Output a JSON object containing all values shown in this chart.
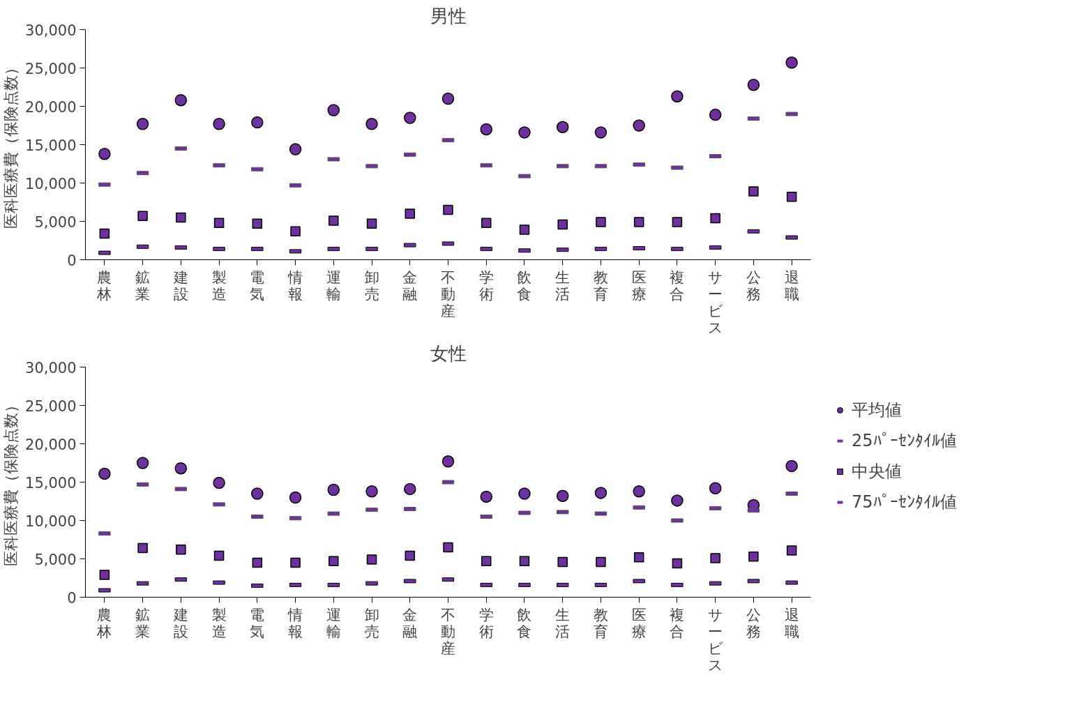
{
  "chart_data": [
    {
      "type": "scatter",
      "title": "男性",
      "ylabel": "医科医療費（保険点数）",
      "categories": [
        "農林",
        "鉱業",
        "建設",
        "製造",
        "電気",
        "情報",
        "運輸",
        "卸売",
        "金融",
        "不動産",
        "学術",
        "飲食",
        "生活",
        "教育",
        "医療",
        "複合",
        "サービス",
        "公務",
        "退職"
      ],
      "ylim": [
        0,
        30000
      ],
      "yticks": [
        {
          "value": 0,
          "label": "0"
        },
        {
          "value": 5000,
          "label": "5,000"
        },
        {
          "value": 10000,
          "label": "10,000"
        },
        {
          "value": 15000,
          "label": "15,000"
        },
        {
          "value": 20000,
          "label": "20,000"
        },
        {
          "value": 25000,
          "label": "25,000"
        },
        {
          "value": 30000,
          "label": "30,000"
        }
      ],
      "grid": false,
      "series": [
        {
          "color": "#7030a0",
          "marker": "circle",
          "values": [
            13800,
            17700,
            20800,
            17700,
            17900,
            14400,
            19500,
            17700,
            18500,
            21000,
            17000,
            16600,
            17300,
            16600,
            17500,
            21300,
            18900,
            22800,
            25700
          ]
        },
        {
          "color": "#7030a0",
          "values": [
            900,
            1700,
            1600,
            1400,
            1400,
            1100,
            1400,
            1400,
            1900,
            2100,
            1400,
            1200,
            1300,
            1400,
            1500,
            1400,
            1600,
            3700,
            2900
          ]
        },
        {
          "color": "#7030a0",
          "marker": "square",
          "values": [
            3400,
            5700,
            5500,
            4800,
            4700,
            3700,
            5100,
            4700,
            6000,
            6500,
            4800,
            3900,
            4600,
            4900,
            4900,
            4900,
            5400,
            8900,
            8200
          ]
        },
        {
          "color": "#7030a0",
          "values": [
            9800,
            11300,
            14500,
            12300,
            11800,
            9700,
            13100,
            12200,
            13700,
            15600,
            12300,
            10900,
            12200,
            12200,
            12400,
            12000,
            13500,
            18400,
            19000
          ]
        }
      ]
    },
    {
      "type": "scatter",
      "title": "女性",
      "ylabel": "医科医療費（保険点数）",
      "categories": [
        "農林",
        "鉱業",
        "建設",
        "製造",
        "電気",
        "情報",
        "運輸",
        "卸売",
        "金融",
        "不動産",
        "学術",
        "飲食",
        "生活",
        "教育",
        "医療",
        "複合",
        "サービス",
        "公務",
        "退職"
      ],
      "ylim": [
        0,
        30000
      ],
      "yticks": [
        {
          "value": 0,
          "label": "0"
        },
        {
          "value": 5000,
          "label": "5,000"
        },
        {
          "value": 10000,
          "label": "10,000"
        },
        {
          "value": 15000,
          "label": "15,000"
        },
        {
          "value": 20000,
          "label": "20,000"
        },
        {
          "value": 25000,
          "label": "25,000"
        },
        {
          "value": 30000,
          "label": "30,000"
        }
      ],
      "grid": false,
      "legend": "right",
      "series": [
        {
          "name": "平均値",
          "color": "#7030a0",
          "marker": "circle",
          "values": [
            16100,
            17500,
            16800,
            14900,
            13500,
            13000,
            14000,
            13800,
            14100,
            17700,
            13100,
            13500,
            13200,
            13600,
            13800,
            12600,
            14200,
            12000,
            17100
          ]
        },
        {
          "name": "25ﾊﾟｰｾﾝﾀｲﾙ値",
          "color": "#7030a0",
          "values": [
            900,
            1800,
            2300,
            1900,
            1500,
            1600,
            1600,
            1800,
            2100,
            2300,
            1600,
            1600,
            1600,
            1600,
            2100,
            1600,
            1800,
            2100,
            1900
          ]
        },
        {
          "name": "中央値",
          "color": "#7030a0",
          "marker": "square",
          "values": [
            2900,
            6400,
            6200,
            5400,
            4500,
            4500,
            4700,
            4900,
            5400,
            6500,
            4700,
            4700,
            4600,
            4600,
            5200,
            4400,
            5100,
            5300,
            6100
          ]
        },
        {
          "name": "75ﾊﾟｰｾﾝﾀｲﾙ値",
          "color": "#7030a0",
          "values": [
            8300,
            14700,
            14100,
            12100,
            10500,
            10300,
            10900,
            11400,
            11500,
            15000,
            10500,
            11000,
            11100,
            10900,
            11700,
            10000,
            11600,
            11300,
            13500
          ]
        }
      ]
    }
  ]
}
